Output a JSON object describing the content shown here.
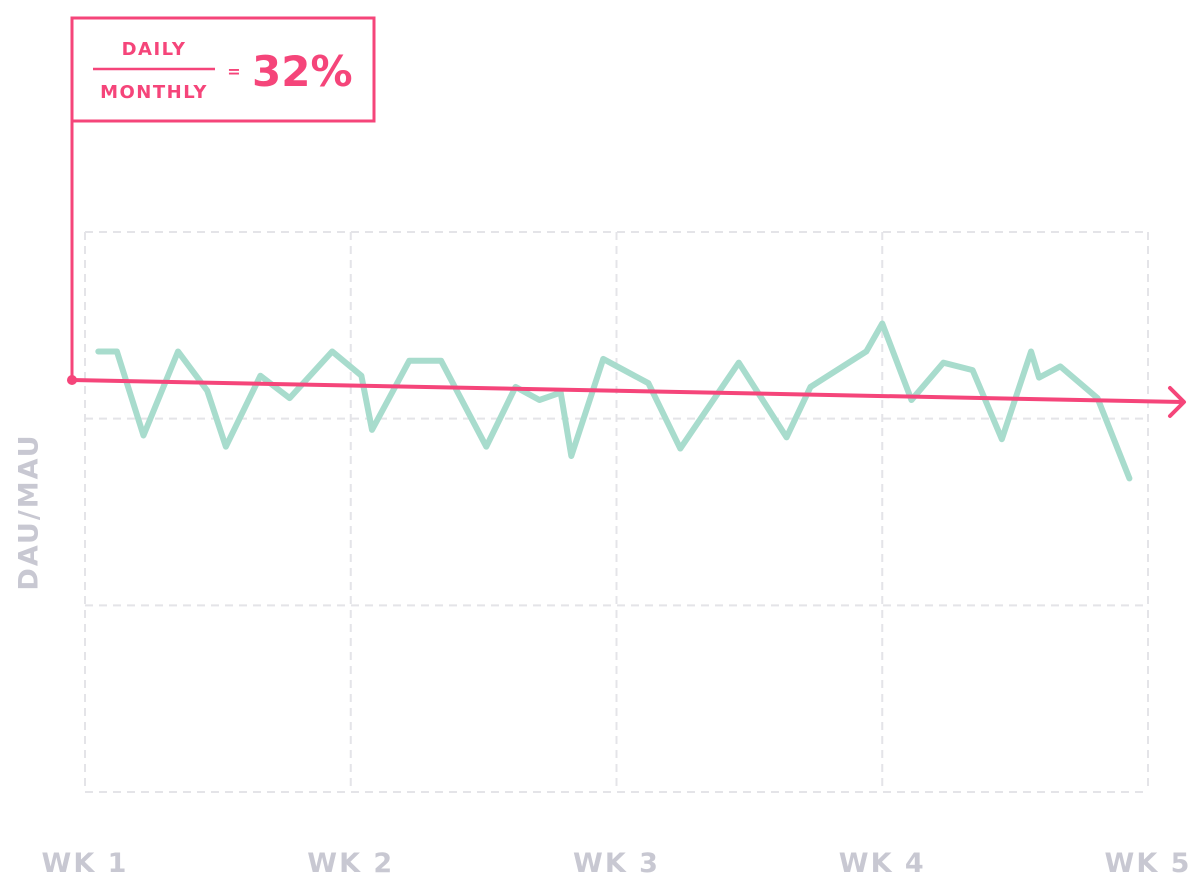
{
  "chart_data": {
    "type": "line",
    "y_label": "DAU/MAU",
    "annotation": {
      "numerator": "DAILY",
      "denominator": "MONTHLY",
      "equals": "=",
      "result": "32%"
    },
    "xlim": [
      1,
      5
    ],
    "xticks": [
      {
        "value": 1,
        "label": "WK 1"
      },
      {
        "value": 2,
        "label": "WK 2"
      },
      {
        "value": 3,
        "label": "WK 3"
      },
      {
        "value": 4,
        "label": "WK 4"
      },
      {
        "value": 5,
        "label": "WK 5"
      }
    ],
    "ylim": [
      0,
      3
    ],
    "yticks": [
      0,
      1,
      2,
      3
    ],
    "grid": true,
    "color": "#a8dccd",
    "x": [
      1.05,
      1.12,
      1.22,
      1.35,
      1.46,
      1.53,
      1.66,
      1.77,
      1.93,
      2.04,
      2.08,
      2.22,
      2.34,
      2.51,
      2.62,
      2.71,
      2.79,
      2.83,
      2.95,
      3.12,
      3.24,
      3.46,
      3.64,
      3.73,
      3.94,
      4.0,
      4.11,
      4.23,
      4.34,
      4.45,
      4.56,
      4.59,
      4.67,
      4.81,
      4.93
    ],
    "values": [
      2.36,
      2.36,
      1.91,
      2.36,
      2.15,
      1.85,
      2.23,
      2.11,
      2.36,
      2.23,
      1.94,
      2.31,
      2.31,
      1.85,
      2.17,
      2.1,
      2.14,
      1.8,
      2.32,
      2.19,
      1.84,
      2.3,
      1.9,
      2.17,
      2.36,
      2.51,
      2.1,
      2.3,
      2.26,
      1.89,
      2.36,
      2.22,
      2.28,
      2.11,
      1.68
    ]
  }
}
